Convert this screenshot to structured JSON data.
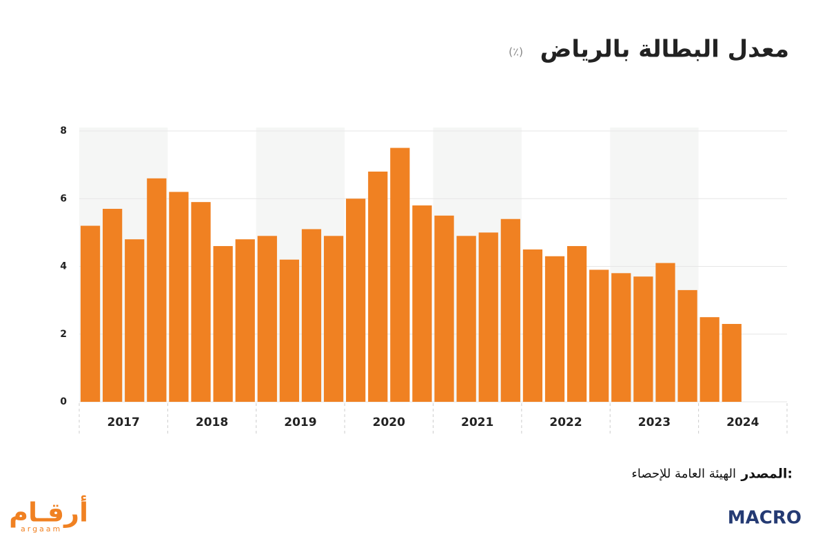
{
  "chart_data": {
    "type": "bar",
    "title": "معدل البطالة بالرياض",
    "subtitle": "(٪)",
    "categories": [
      null,
      null,
      null,
      null,
      null,
      null,
      null,
      null,
      null,
      null,
      null,
      null,
      null,
      null,
      null,
      null,
      null,
      null,
      null,
      null,
      null,
      null,
      null,
      null,
      null,
      null,
      null,
      null,
      null,
      null
    ],
    "years": [
      "2017",
      "2018",
      "2019",
      "2020",
      "2021",
      "2022",
      "2023",
      "2024"
    ],
    "values": [
      5.2,
      5.7,
      4.8,
      6.6,
      6.2,
      5.9,
      4.6,
      4.8,
      4.9,
      4.2,
      5.1,
      4.9,
      6.0,
      6.8,
      7.5,
      5.8,
      5.5,
      4.9,
      5.0,
      5.4,
      4.5,
      4.3,
      4.6,
      3.9,
      3.8,
      3.7,
      4.1,
      3.3,
      2.5,
      2.3
    ],
    "color": "#f08122",
    "ylim": [
      0,
      8
    ],
    "yticks": [
      0,
      2,
      4,
      6,
      8
    ],
    "grid": true,
    "source_label": "المصدر:",
    "source": "الهيئة العامة للإحصاء"
  },
  "branding": {
    "argaam_ar": "أرقـام",
    "argaam_en": "argaam",
    "macro": "MACRO"
  }
}
